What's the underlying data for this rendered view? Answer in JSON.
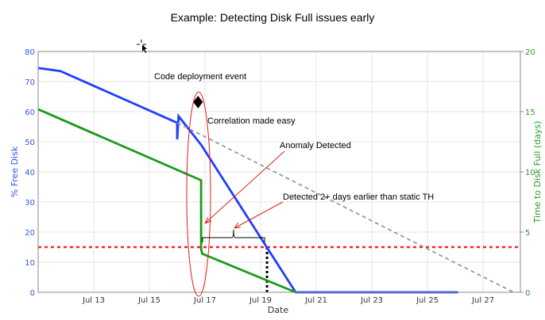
{
  "chart_data": {
    "type": "line",
    "title": "Example: Detecting Disk Full issues early",
    "xlabel": "Date",
    "ylabel": "% Free Disk",
    "ylabel_right": "Time to Disk Full (days)",
    "xlim": [
      "2013-07-11",
      "2013-07-28.3"
    ],
    "ylim": [
      0,
      80
    ],
    "ylim_right": [
      0,
      20
    ],
    "x_ticks": [
      "Jul 13",
      "Jul 15",
      "Jul 17",
      "Jul 19",
      "Jul 21",
      "Jul 23",
      "Jul 25",
      "Jul 27"
    ],
    "x_tick_days": [
      13,
      15,
      17,
      19,
      21,
      23,
      25,
      27
    ],
    "y_ticks": [
      0,
      10,
      20,
      30,
      40,
      50,
      60,
      70,
      80
    ],
    "y_ticks_right": [
      0,
      5,
      10,
      15,
      20
    ],
    "grid": true,
    "colors": {
      "free_disk": "#1f3fff",
      "time_to_full": "#1a9a1a",
      "projection": "#999999",
      "threshold": "#ff2020",
      "left_axis": "#3355ee",
      "right_axis": "#2a9a2a",
      "annotation": "#e02020"
    },
    "series": [
      {
        "axis": "left",
        "color": "#1f3fff",
        "x_day": [
          11,
          11.8,
          16,
          16,
          16.05,
          16.86,
          20.26,
          26.1
        ],
        "y": [
          74.5,
          73.5,
          56.3,
          50.8,
          58.5,
          49,
          0,
          0
        ]
      },
      {
        "axis": "right",
        "color": "#1a9a1a",
        "x_day": [
          11,
          16.86,
          16.86,
          16.9,
          20.26
        ],
        "y": [
          15.2,
          9.3,
          3.6,
          3.2,
          0
        ]
      },
      {
        "axis": "left",
        "color": "#999999",
        "style": "dashed",
        "x_day": [
          16,
          28.1
        ],
        "y": [
          56.3,
          0
        ]
      }
    ],
    "threshold": {
      "axis": "left",
      "y": 15
    },
    "static_detection": {
      "x_day": 19.23
    },
    "event_marker": {
      "x_day": 16.75,
      "y": 63.2
    },
    "annotations": {
      "deployment": "Code deployment event",
      "correlation": "Correlation made easy",
      "anomaly": "Anomaly Detected",
      "earlier": "Detected 2+ days earlier than static TH"
    }
  }
}
